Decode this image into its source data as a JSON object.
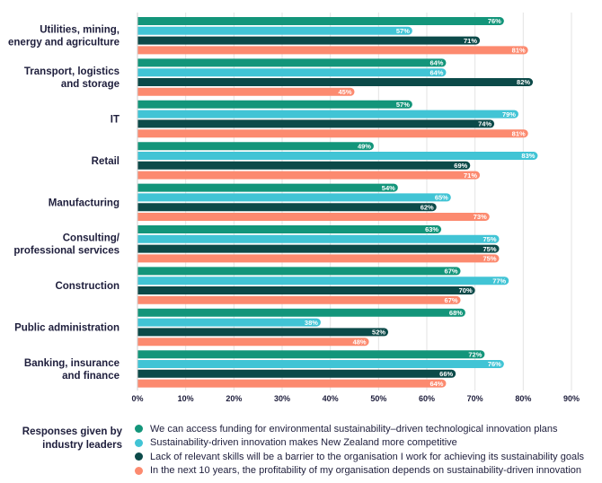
{
  "chart_data": {
    "type": "bar",
    "orientation": "horizontal",
    "categories": [
      [
        "Utilities, mining,",
        "energy and agriculture"
      ],
      [
        "Transport, logistics",
        "and storage"
      ],
      [
        "IT"
      ],
      [
        "Retail"
      ],
      [
        "Manufacturing"
      ],
      [
        "Consulting/",
        "professional services"
      ],
      [
        "Construction"
      ],
      [
        "Public administration"
      ],
      [
        "Banking, insurance",
        "and finance"
      ]
    ],
    "series": [
      {
        "name": "We can access funding for environmental sustainability–driven technological innovation plans",
        "color": "#13957a",
        "values": [
          76,
          64,
          57,
          49,
          54,
          63,
          67,
          68,
          72
        ]
      },
      {
        "name": "Sustainability-driven innovation makes New Zealand more competitive",
        "color": "#41c4d5",
        "values": [
          57,
          64,
          79,
          83,
          65,
          75,
          77,
          38,
          76
        ]
      },
      {
        "name": "Lack of relevant skills will be a barrier to the organisation I work for achieving its sustainability goals",
        "color": "#0c4a49",
        "values": [
          71,
          82,
          74,
          69,
          62,
          75,
          70,
          52,
          66
        ]
      },
      {
        "name": "In the next 10 years, the profitability of my organisation depends on sustainability-driven innovation",
        "color": "#fc8a6f",
        "values": [
          81,
          45,
          81,
          71,
          73,
          75,
          67,
          48,
          64
        ]
      }
    ],
    "value_suffix": "%",
    "xlim": [
      0,
      90
    ],
    "xticks": [
      "0%",
      "10%",
      "20%",
      "30%",
      "40%",
      "50%",
      "60%",
      "70%",
      "80%",
      "90%"
    ],
    "grid": true,
    "legend_position": "bottom",
    "legend_title": "Responses given by industry leaders"
  }
}
